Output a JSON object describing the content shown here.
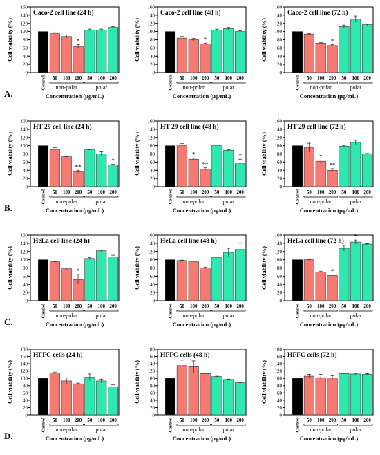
{
  "figure": {
    "ylabel": "Cell viability (%)",
    "xlabel": "Concentration (μg/mL)",
    "group_labels": [
      "non-polar",
      "polar"
    ],
    "control_label": "Control",
    "row_letters": [
      "A.",
      "B.",
      "C.",
      "D."
    ],
    "colors": {
      "control": "#000000",
      "nonpolar": "#f47a72",
      "polar": "#2ee8b0",
      "grid": "#000000"
    }
  },
  "chart_data": [
    {
      "type": "bar",
      "title": "Caco-2 cell line (24 h)",
      "ylim": [
        0,
        160
      ],
      "yticks": [
        0,
        20,
        40,
        60,
        80,
        100,
        120,
        140,
        160
      ],
      "categories": [
        "Control",
        "50",
        "100",
        "200",
        "50",
        "100",
        "200"
      ],
      "values": [
        100,
        95,
        88,
        64,
        104,
        104,
        110
      ],
      "errors": [
        0,
        3,
        4,
        4,
        2,
        2,
        2
      ],
      "annotations": [
        "",
        "",
        "",
        "*",
        "",
        "",
        ""
      ]
    },
    {
      "type": "bar",
      "title": "Caco-2 cell line (48 h)",
      "ylim": [
        0,
        160
      ],
      "yticks": [
        0,
        20,
        40,
        60,
        80,
        100,
        120,
        140,
        160
      ],
      "categories": [
        "Control",
        "50",
        "100",
        "200",
        "50",
        "100",
        "200"
      ],
      "values": [
        100,
        84,
        80,
        70,
        104,
        107,
        100
      ],
      "errors": [
        0,
        4,
        3,
        2,
        2,
        3,
        2
      ],
      "annotations": [
        "",
        "",
        "",
        "*",
        "",
        "",
        ""
      ]
    },
    {
      "type": "bar",
      "title": "Caco-2 cell line (72 h)",
      "ylim": [
        0,
        160
      ],
      "yticks": [
        0,
        20,
        40,
        60,
        80,
        100,
        120,
        140,
        160
      ],
      "categories": [
        "Control",
        "50",
        "100",
        "200",
        "50",
        "100",
        "200"
      ],
      "values": [
        100,
        94,
        72,
        66,
        112,
        130,
        117
      ],
      "errors": [
        0,
        1,
        1,
        2,
        4,
        8,
        2
      ],
      "annotations": [
        "",
        "",
        "",
        "*",
        "",
        "",
        ""
      ]
    },
    {
      "type": "bar",
      "title": "HT-29 cell line (24 h)",
      "ylim": [
        0,
        160
      ],
      "yticks": [
        0,
        20,
        40,
        60,
        80,
        100,
        120,
        140,
        160
      ],
      "categories": [
        "Control",
        "50",
        "100",
        "200",
        "50",
        "100",
        "200"
      ],
      "values": [
        100,
        90,
        73,
        37,
        90,
        80,
        53
      ],
      "errors": [
        0,
        5,
        1,
        3,
        1,
        5,
        2
      ],
      "annotations": [
        "",
        "",
        "",
        "**",
        "",
        "",
        "*"
      ]
    },
    {
      "type": "bar",
      "title": "HT-29 cell line (48 h)",
      "ylim": [
        0,
        160
      ],
      "yticks": [
        0,
        20,
        40,
        60,
        80,
        100,
        120,
        140,
        160
      ],
      "categories": [
        "Control",
        "50",
        "100",
        "200",
        "50",
        "100",
        "200"
      ],
      "values": [
        100,
        100,
        67,
        43,
        101,
        89,
        56
      ],
      "errors": [
        0,
        5,
        3,
        3,
        1,
        1,
        11
      ],
      "annotations": [
        "",
        "",
        "*",
        "**",
        "",
        "",
        "*"
      ]
    },
    {
      "type": "bar",
      "title": "HT-29 cell line (72 h)",
      "ylim": [
        0,
        160
      ],
      "yticks": [
        0,
        20,
        40,
        60,
        80,
        100,
        120,
        140,
        160
      ],
      "categories": [
        "Control",
        "50",
        "100",
        "200",
        "50",
        "100",
        "200"
      ],
      "values": [
        100,
        95,
        62,
        40,
        99,
        108,
        80
      ],
      "errors": [
        0,
        11,
        3,
        4,
        2,
        5,
        1
      ],
      "annotations": [
        "",
        "",
        "*",
        "**",
        "",
        "",
        ""
      ]
    },
    {
      "type": "bar",
      "title": "HeLa cell line (24 h)",
      "ylim": [
        0,
        160
      ],
      "yticks": [
        0,
        20,
        40,
        60,
        80,
        100,
        120,
        140,
        160
      ],
      "categories": [
        "Control",
        "50",
        "100",
        "200",
        "50",
        "100",
        "200"
      ],
      "values": [
        100,
        95,
        78,
        52,
        103,
        122,
        107
      ],
      "errors": [
        0,
        1,
        2,
        12,
        2,
        2,
        4
      ],
      "annotations": [
        "",
        "",
        "",
        "*",
        "",
        "",
        ""
      ]
    },
    {
      "type": "bar",
      "title": "HeLa cell line (48 h)",
      "ylim": [
        0,
        160
      ],
      "yticks": [
        0,
        20,
        40,
        60,
        80,
        100,
        120,
        140,
        160
      ],
      "categories": [
        "Control",
        "50",
        "100",
        "200",
        "50",
        "100",
        "200"
      ],
      "values": [
        100,
        98,
        96,
        80,
        106,
        118,
        125
      ],
      "errors": [
        0,
        1,
        1,
        2,
        1,
        10,
        15
      ],
      "annotations": [
        "",
        "",
        "",
        "",
        "",
        "",
        ""
      ]
    },
    {
      "type": "bar",
      "title": "HeLa cell line (72 h)",
      "ylim": [
        0,
        160
      ],
      "yticks": [
        0,
        20,
        40,
        60,
        80,
        100,
        120,
        140,
        160
      ],
      "categories": [
        "Control",
        "50",
        "100",
        "200",
        "50",
        "100",
        "200"
      ],
      "values": [
        100,
        100,
        70,
        62,
        128,
        143,
        138
      ],
      "errors": [
        0,
        1,
        2,
        1,
        7,
        5,
        1
      ],
      "annotations": [
        "",
        "",
        "",
        "*",
        "",
        "*",
        ""
      ]
    },
    {
      "type": "bar",
      "title": "HFFC cells (24 h)",
      "ylim": [
        0,
        180
      ],
      "yticks": [
        0,
        20,
        40,
        60,
        80,
        100,
        120,
        140,
        160,
        180
      ],
      "categories": [
        "Control",
        "50",
        "100",
        "200",
        "50",
        "100",
        "200"
      ],
      "values": [
        100,
        115,
        93,
        85,
        103,
        93,
        77
      ],
      "errors": [
        0,
        2,
        8,
        2,
        9,
        5,
        5
      ],
      "annotations": [
        "",
        "",
        "",
        "",
        "",
        "",
        ""
      ]
    },
    {
      "type": "bar",
      "title": "HFFC cells (48 h)",
      "ylim": [
        0,
        180
      ],
      "yticks": [
        0,
        20,
        40,
        60,
        80,
        100,
        120,
        140,
        160,
        180
      ],
      "categories": [
        "Control",
        "50",
        "100",
        "200",
        "50",
        "100",
        "200"
      ],
      "values": [
        100,
        135,
        132,
        113,
        105,
        97,
        88
      ],
      "errors": [
        0,
        15,
        16,
        1,
        1,
        1,
        1
      ],
      "annotations": [
        "",
        "",
        "",
        "",
        "",
        "",
        ""
      ]
    },
    {
      "type": "bar",
      "title": "HFFC cells (72 h)",
      "ylim": [
        0,
        180
      ],
      "yticks": [
        0,
        20,
        40,
        60,
        80,
        100,
        120,
        140,
        160,
        180
      ],
      "categories": [
        "Control",
        "50",
        "100",
        "200",
        "50",
        "100",
        "200"
      ],
      "values": [
        100,
        106,
        102,
        101,
        113,
        112,
        111
      ],
      "errors": [
        0,
        5,
        9,
        6,
        1,
        2,
        2
      ],
      "annotations": [
        "",
        "",
        "",
        "",
        "",
        "",
        ""
      ]
    }
  ]
}
